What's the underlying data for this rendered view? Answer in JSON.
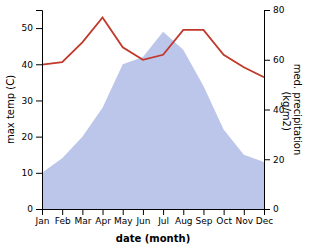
{
  "chart_data": {
    "type": "line",
    "categories": [
      "Jan",
      "Feb",
      "Mar",
      "Apr",
      "May",
      "Jun",
      "Jul",
      "Aug",
      "Sep",
      "Oct",
      "Nov",
      "Dec"
    ],
    "series": [
      {
        "type": "area",
        "color": "#b0bce8",
        "values": [
          10,
          14,
          20,
          28,
          40,
          42,
          49,
          44,
          34,
          22,
          15,
          13
        ]
      },
      {
        "type": "line",
        "color": "#c0392b",
        "axis": "y2",
        "values": [
          58,
          59,
          67,
          77,
          65,
          60,
          62,
          72,
          72,
          62,
          57,
          53
        ]
      }
    ],
    "ylim": [
      0,
      55
    ],
    "yticks": [
      0,
      10,
      20,
      30,
      40,
      50
    ],
    "y2lim": [
      0,
      80
    ],
    "y2ticks": [
      0,
      20,
      40,
      60,
      80
    ],
    "xlabel": "date (month)",
    "ylabel": "max temp (C)",
    "y2label": "med. precipitation\n (kg/m2)",
    "grid": false
  }
}
